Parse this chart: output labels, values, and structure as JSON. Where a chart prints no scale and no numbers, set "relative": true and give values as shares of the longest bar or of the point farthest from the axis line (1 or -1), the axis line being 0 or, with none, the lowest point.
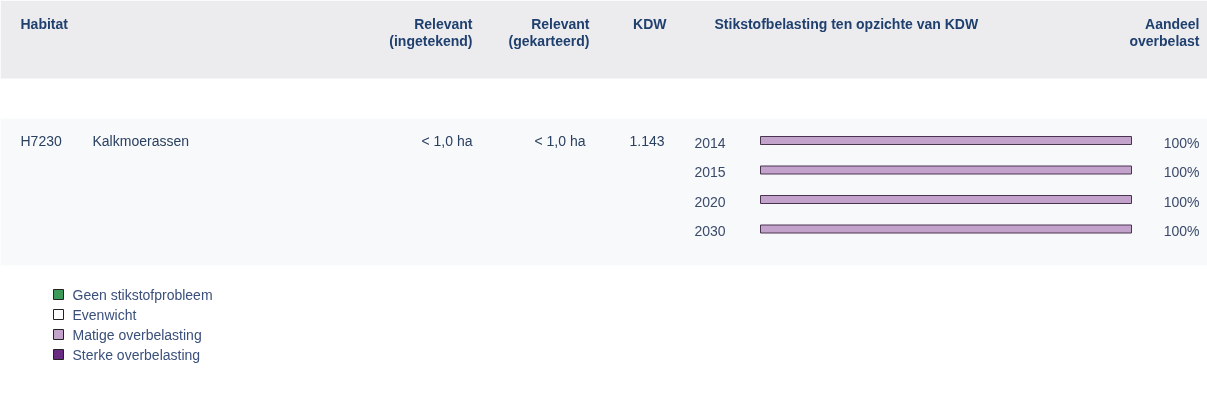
{
  "chart_data": {
    "type": "bar",
    "orientation": "horizontal",
    "stacked": true,
    "relative": true,
    "title": "Stikstofbelasting ten opzichte van KDW",
    "categories": [
      "2014",
      "2015",
      "2020",
      "2030"
    ],
    "series": [
      {
        "name": "Geen stikstofprobleem",
        "color": "#3d9b5a",
        "values": [
          0,
          0,
          0,
          0
        ]
      },
      {
        "name": "Evenwicht",
        "color": "#ffffff",
        "values": [
          0,
          0,
          0,
          0
        ]
      },
      {
        "name": "Matige overbelasting",
        "color": "#c3a3cc",
        "values": [
          1,
          1,
          1,
          1
        ]
      },
      {
        "name": "Sterke overbelasting",
        "color": "#6a2c83",
        "values": [
          0,
          0,
          0,
          0
        ]
      }
    ],
    "totals": [
      "100%",
      "100%",
      "100%",
      "100%"
    ],
    "legend": "bottom left",
    "annotations": [
      "Habitat",
      "Relevant\n(ingetekend)",
      "Relevant\n(gekarteerd)",
      "KDW",
      "Aandeel\noverbelast",
      "H7230",
      "Kalkmoerassen",
      "< 1,0 ha",
      "< 1,0 ha",
      "1.143"
    ]
  }
}
